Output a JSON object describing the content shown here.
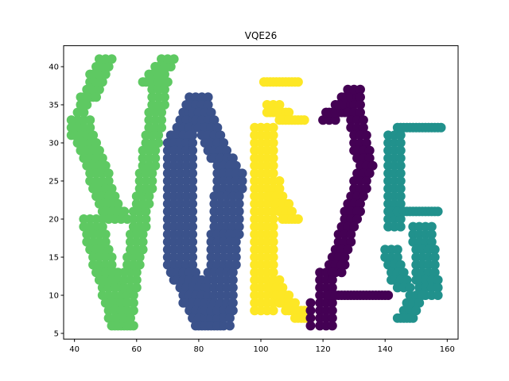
{
  "chart_data": {
    "type": "scatter",
    "title": "VQE26",
    "xlabel": "",
    "ylabel": "",
    "xlim": [
      36.5,
      163.5
    ],
    "ylim": [
      4.25,
      42.75
    ],
    "xticks": [
      40,
      60,
      80,
      100,
      120,
      140,
      160
    ],
    "yticks": [
      5,
      10,
      15,
      20,
      25,
      30,
      35,
      40
    ],
    "grid": false,
    "legend": "none",
    "series": [
      {
        "color": "#5ec962",
        "strokes": [
          {
            "x0": 40,
            "y0": 31,
            "x1": 44,
            "y1": 36,
            "w": 3,
            "h": 0.6,
            "step": 1.0
          },
          {
            "x0": 44,
            "y0": 36,
            "x1": 50,
            "y1": 41,
            "w": 4,
            "h": 0.6,
            "step": 1.0
          },
          {
            "x0": 42,
            "y0": 33,
            "x1": 54,
            "y1": 20,
            "w": 7,
            "h": 0.8,
            "step": 1.0
          },
          {
            "x0": 46,
            "y0": 20,
            "x1": 56,
            "y1": 6,
            "w": 7,
            "h": 0.8,
            "step": 1.0
          },
          {
            "x0": 56,
            "y0": 6,
            "x1": 68,
            "y1": 38,
            "w": 5,
            "h": 0.8,
            "step": 1.0
          },
          {
            "x0": 64,
            "y0": 38,
            "x1": 70,
            "y1": 41,
            "w": 4,
            "h": 0.6,
            "step": 1.0
          }
        ]
      },
      {
        "color": "#3b528b",
        "strokes": [
          {
            "x0": 80,
            "y0": 36,
            "x1": 74,
            "y1": 30,
            "w": 7,
            "h": 0.6,
            "step": 1.0
          },
          {
            "x0": 74,
            "y0": 30,
            "x1": 74,
            "y1": 14,
            "w": 8,
            "h": 0.6,
            "step": 1.0
          },
          {
            "x0": 74,
            "y0": 14,
            "x1": 84,
            "y1": 6,
            "w": 8,
            "h": 0.6,
            "step": 1.0
          },
          {
            "x0": 80,
            "y0": 36,
            "x1": 90,
            "y1": 26,
            "w": 7,
            "h": 0.6,
            "step": 1.0
          },
          {
            "x0": 90,
            "y0": 26,
            "x1": 86,
            "y1": 6,
            "w": 8,
            "h": 0.6,
            "step": 1.0
          }
        ]
      },
      {
        "color": "#fde725",
        "strokes": [
          {
            "x0": 103,
            "y0": 38,
            "x1": 110,
            "y1": 38,
            "w": 4,
            "h": 0.6,
            "step": 1.0
          },
          {
            "x0": 104,
            "y0": 35,
            "x1": 112,
            "y1": 33,
            "w": 5,
            "h": 0.8,
            "step": 1.0
          },
          {
            "x0": 101,
            "y0": 32,
            "x1": 101,
            "y1": 8,
            "w": 6,
            "h": 0.6,
            "step": 1.0
          },
          {
            "x0": 104,
            "y0": 25,
            "x1": 110,
            "y1": 20,
            "w": 5,
            "h": 0.8,
            "step": 1.0
          },
          {
            "x0": 104,
            "y0": 12,
            "x1": 114,
            "y1": 7,
            "w": 5,
            "h": 0.8,
            "step": 1.0
          }
        ]
      },
      {
        "color": "#440154",
        "strokes": [
          {
            "x0": 122,
            "y0": 33,
            "x1": 130,
            "y1": 37,
            "w": 5,
            "h": 0.6,
            "step": 1.0
          },
          {
            "x0": 130,
            "y0": 36,
            "x1": 134,
            "y1": 27,
            "w": 5,
            "h": 0.6,
            "step": 1.0
          },
          {
            "x0": 134,
            "y0": 27,
            "x1": 124,
            "y1": 13,
            "w": 5,
            "h": 0.6,
            "step": 1.0
          },
          {
            "x0": 121,
            "y0": 13,
            "x1": 121,
            "y1": 6,
            "w": 5,
            "h": 0.6,
            "step": 1.0
          },
          {
            "x0": 123,
            "y0": 10,
            "x1": 139,
            "y1": 10,
            "w": 5,
            "h": 0.6,
            "step": 1.0
          },
          {
            "x0": 116,
            "y0": 9,
            "x1": 116,
            "y1": 6,
            "w": 1,
            "h": 0.6,
            "step": 1.0
          }
        ]
      },
      {
        "color": "#21918c",
        "strokes": [
          {
            "x0": 145,
            "y0": 32,
            "x1": 157,
            "y1": 32,
            "w": 3,
            "h": 0.6,
            "step": 1.0
          },
          {
            "x0": 143,
            "y0": 31,
            "x1": 143,
            "y1": 19,
            "w": 5,
            "h": 0.6,
            "step": 1.0
          },
          {
            "x0": 143,
            "y0": 21,
            "x1": 155,
            "y1": 21,
            "w": 5,
            "h": 0.6,
            "step": 1.0
          },
          {
            "x0": 152,
            "y0": 19,
            "x1": 154,
            "y1": 10,
            "w": 6,
            "h": 0.6,
            "step": 1.0
          },
          {
            "x0": 150,
            "y0": 10,
            "x1": 146,
            "y1": 7,
            "w": 5,
            "h": 0.6,
            "step": 1.0
          },
          {
            "x0": 142,
            "y0": 16,
            "x1": 146,
            "y1": 11,
            "w": 5,
            "h": 0.6,
            "step": 1.0
          }
        ]
      }
    ]
  }
}
